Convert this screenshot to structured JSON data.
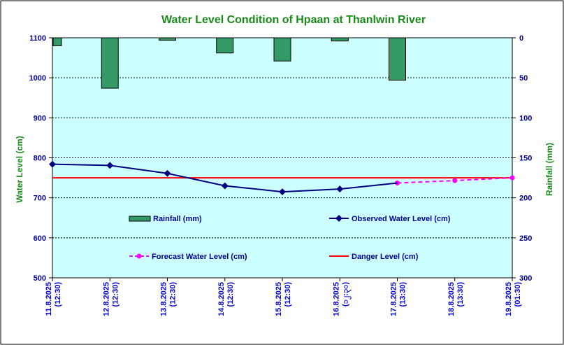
{
  "chart_data": {
    "type": "bar+line",
    "title": "Water Level Condition of Hpaan at Thanlwin River",
    "ylabel_left": "Water Level (cm)",
    "ylabel_right": "Rainfall (mm)",
    "ylim_left": [
      500,
      1100
    ],
    "yticks_left": [
      "500",
      "600",
      "700",
      "800",
      "900",
      "1000",
      "1100"
    ],
    "ylim_right_inverted": [
      0,
      300
    ],
    "yticks_right": [
      "0",
      "50",
      "100",
      "150",
      "200",
      "250",
      "300"
    ],
    "categories": [
      [
        "11.8.2025",
        "(12:30)"
      ],
      [
        "12.8.2025",
        "(12:30)"
      ],
      [
        "13.8.2025",
        "(12:30)"
      ],
      [
        "14.8.2025",
        "(12:30)"
      ],
      [
        "15.8.2025",
        "(12:30)"
      ],
      [
        "16.8.2025",
        "(၁၂:၃၀)"
      ],
      [
        "17.8.2025",
        "(13:30)"
      ],
      [
        "18.8.2025",
        "(13:30)"
      ],
      [
        "19.8.2025",
        "(01:30)"
      ]
    ],
    "grid": true,
    "series": [
      {
        "name": "Rainfall (mm)",
        "kind": "bar",
        "axis": "right",
        "color": "#339966",
        "values": [
          10,
          63,
          3,
          19,
          29,
          4,
          53,
          null,
          null
        ]
      },
      {
        "name": "Observed Water Level (cm)",
        "kind": "line",
        "axis": "left",
        "color": "#000080",
        "values": [
          784,
          781,
          761,
          730,
          715,
          722,
          737,
          null,
          null
        ]
      },
      {
        "name": "Forecast Water Level (cm)",
        "kind": "dashed-line",
        "axis": "left",
        "color": "#ff00ff",
        "values": [
          null,
          null,
          null,
          null,
          null,
          null,
          737,
          743,
          750
        ]
      },
      {
        "name": "Danger Level (cm)",
        "kind": "hline",
        "axis": "left",
        "color": "#ff0000",
        "value": 750
      }
    ],
    "colors": {
      "plot_bg": "#ccffff",
      "title": "#1a8a1a",
      "axis_text": "#00008b",
      "x_text": "#0000cc"
    }
  }
}
